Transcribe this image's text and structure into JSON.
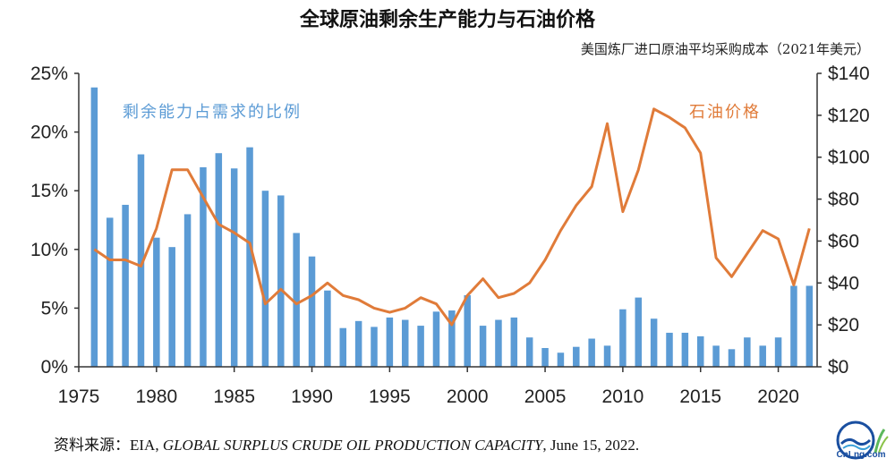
{
  "title": "全球原油剩余生产能力与石油价格",
  "right_axis_title": "美国炼厂进口原油平均采购成本（2021年美元）",
  "source": {
    "prefix": "资料来源：EIA, ",
    "italic": "GLOBAL SURPLUS CRUDE OIL PRODUCTION CAPACITY",
    "suffix": ", June 15, 2022."
  },
  "logo": {
    "text": "CnLng.com"
  },
  "colors": {
    "bars": "#5b9bd5",
    "line": "#e07b39",
    "bar_label": "#5b9bd5",
    "line_label": "#e07b39",
    "axis": "#333333"
  },
  "chart_data": {
    "type": "bar",
    "title": "全球原油剩余生产能力与石油价格",
    "x": [
      1976,
      1977,
      1978,
      1979,
      1980,
      1981,
      1982,
      1983,
      1984,
      1985,
      1986,
      1987,
      1988,
      1989,
      1990,
      1991,
      1992,
      1993,
      1994,
      1995,
      1996,
      1997,
      1998,
      1999,
      2000,
      2001,
      2002,
      2003,
      2004,
      2005,
      2006,
      2007,
      2008,
      2009,
      2010,
      2011,
      2012,
      2013,
      2014,
      2015,
      2016,
      2017,
      2018,
      2019,
      2020,
      2021,
      2022
    ],
    "x_ticks": [
      "1975",
      "1980",
      "1985",
      "1990",
      "1995",
      "2000",
      "2005",
      "2010",
      "2015",
      "2020"
    ],
    "y_left_ticks": [
      "0%",
      "5%",
      "10%",
      "15%",
      "20%",
      "25%"
    ],
    "y_left_range": [
      0,
      25
    ],
    "y_right_ticks": [
      "$0",
      "$20",
      "$40",
      "$60",
      "$80",
      "$100",
      "$120",
      "$140"
    ],
    "y_right_range": [
      0,
      140
    ],
    "grid": false,
    "series": [
      {
        "name": "剩余能力占需求的比例",
        "type": "bar",
        "axis": "left",
        "values": [
          23.8,
          12.7,
          13.8,
          18.1,
          11.0,
          10.2,
          13.0,
          17.0,
          18.2,
          16.9,
          18.7,
          15.0,
          14.6,
          11.4,
          9.4,
          6.5,
          3.3,
          3.9,
          3.4,
          4.2,
          4.0,
          3.5,
          4.7,
          4.8,
          6.1,
          3.5,
          4.0,
          4.2,
          2.5,
          1.6,
          1.2,
          1.7,
          2.4,
          1.8,
          4.9,
          5.9,
          4.1,
          2.9,
          2.9,
          2.6,
          1.8,
          1.5,
          2.5,
          1.8,
          2.5,
          6.9,
          6.9
        ]
      },
      {
        "name": "石油价格",
        "type": "line",
        "axis": "right",
        "values": [
          56,
          51,
          51,
          48,
          66,
          94,
          94,
          81,
          68,
          64,
          59,
          30,
          37,
          30,
          34,
          40,
          34,
          32,
          28,
          26,
          28,
          33,
          30,
          20,
          34,
          42,
          33,
          35,
          40,
          51,
          65,
          77,
          86,
          116,
          74,
          94,
          123,
          119,
          114,
          102,
          52,
          43,
          54,
          65,
          61,
          39,
          66
        ]
      }
    ]
  }
}
